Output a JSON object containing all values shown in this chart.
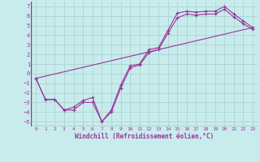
{
  "background_color": "#c8ecec",
  "grid_color": "#aad4d4",
  "line_color": "#993399",
  "marker_color": "#993399",
  "xlabel": "Windchill (Refroidissement éolien,°C)",
  "xlabel_fontsize": 5.5,
  "xlim": [
    -0.5,
    23.5
  ],
  "ylim": [
    -5.5,
    7.5
  ],
  "yticks": [
    -5,
    -4,
    -3,
    -2,
    -1,
    0,
    1,
    2,
    3,
    4,
    5,
    6,
    7
  ],
  "xticks": [
    0,
    1,
    2,
    3,
    4,
    5,
    6,
    7,
    8,
    9,
    10,
    11,
    12,
    13,
    14,
    15,
    16,
    17,
    18,
    19,
    20,
    21,
    22,
    23
  ],
  "series1_x": [
    0,
    1,
    2,
    3,
    4,
    5,
    6,
    7,
    8,
    9,
    10,
    11,
    12,
    13,
    14,
    15,
    16,
    17,
    18,
    19,
    20,
    21,
    22,
    23
  ],
  "series1_y": [
    -0.5,
    -2.7,
    -2.7,
    -3.8,
    -3.8,
    -3.0,
    -3.0,
    -5.0,
    -3.8,
    -1.2,
    0.8,
    1.0,
    2.5,
    2.7,
    4.5,
    6.3,
    6.5,
    6.4,
    6.5,
    6.5,
    7.0,
    6.2,
    5.5,
    4.8
  ],
  "series2_x": [
    0,
    1,
    2,
    3,
    4,
    5,
    6,
    7,
    8,
    9,
    10,
    11,
    12,
    13,
    14,
    15,
    16,
    17,
    18,
    19,
    20,
    21,
    22,
    23
  ],
  "series2_y": [
    -0.5,
    -2.7,
    -2.7,
    -3.8,
    -3.5,
    -2.8,
    -2.5,
    -5.0,
    -4.0,
    -1.5,
    0.6,
    0.9,
    2.2,
    2.5,
    4.2,
    5.8,
    6.2,
    6.1,
    6.2,
    6.2,
    6.7,
    5.9,
    5.2,
    4.6
  ],
  "series3_x": [
    0,
    23
  ],
  "series3_y": [
    -0.5,
    4.8
  ]
}
